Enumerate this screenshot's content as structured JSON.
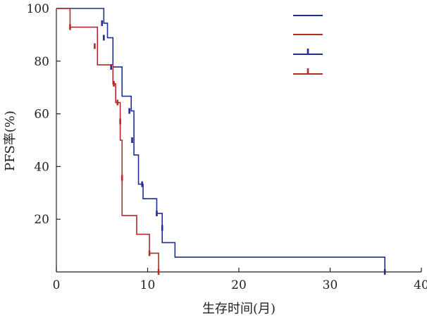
{
  "chart_data": {
    "type": "line",
    "subtype": "kaplan-meier-step",
    "title": "",
    "xlabel": "生存时间(月)",
    "ylabel": "PFS率(%)",
    "xlim": [
      0,
      40
    ],
    "ylim": [
      0,
      100
    ],
    "xticks": [
      0,
      10,
      20,
      30,
      40
    ],
    "yticks": [
      20,
      40,
      60,
      80,
      100
    ],
    "x_tick_labels": [
      "0",
      "10",
      "20",
      "30",
      "40"
    ],
    "y_tick_labels": [
      "20",
      "40",
      "60",
      "80",
      "100"
    ],
    "grid": false,
    "legend_position": "top-right",
    "legend": [
      {
        "style": "line",
        "color": "#1f2f8c"
      },
      {
        "style": "line",
        "color": "#b22a2a"
      },
      {
        "style": "censor",
        "color": "#1f2f8c"
      },
      {
        "style": "censor",
        "color": "#b22a2a"
      }
    ],
    "series": [
      {
        "color": "#1f2f8c",
        "x": [
          0,
          5.2,
          5.6,
          6.2,
          7.2,
          8.2,
          8.5,
          9.0,
          9.5,
          11.0,
          11.6,
          13.0,
          36.0
        ],
        "y": [
          100,
          94.4,
          88.9,
          77.8,
          66.7,
          61.1,
          44.4,
          33.3,
          27.8,
          22.2,
          11.1,
          5.6,
          0
        ],
        "censored": [
          {
            "x": 5.0,
            "y": 94.4
          },
          {
            "x": 5.2,
            "y": 88.9
          },
          {
            "x": 6.0,
            "y": 77.8
          },
          {
            "x": 8.0,
            "y": 61.1
          },
          {
            "x": 8.3,
            "y": 50.0
          },
          {
            "x": 9.4,
            "y": 33.3
          },
          {
            "x": 11.0,
            "y": 22.2
          },
          {
            "x": 11.6,
            "y": 16.7
          },
          {
            "x": 36.0,
            "y": 0
          }
        ]
      },
      {
        "color": "#b22a2a",
        "x": [
          0,
          1.5,
          4.5,
          6.2,
          6.5,
          7.0,
          7.2,
          8.8,
          10.2,
          11.2
        ],
        "y": [
          100,
          92.9,
          78.6,
          71.4,
          64.3,
          50.0,
          21.4,
          14.3,
          7.1,
          0
        ],
        "censored": [
          {
            "x": 1.5,
            "y": 92.9
          },
          {
            "x": 4.2,
            "y": 85.7
          },
          {
            "x": 6.3,
            "y": 71.4
          },
          {
            "x": 6.7,
            "y": 64.3
          },
          {
            "x": 7.0,
            "y": 57.1
          },
          {
            "x": 7.2,
            "y": 35.7
          },
          {
            "x": 10.2,
            "y": 7.1
          },
          {
            "x": 11.2,
            "y": 0
          }
        ]
      }
    ]
  }
}
